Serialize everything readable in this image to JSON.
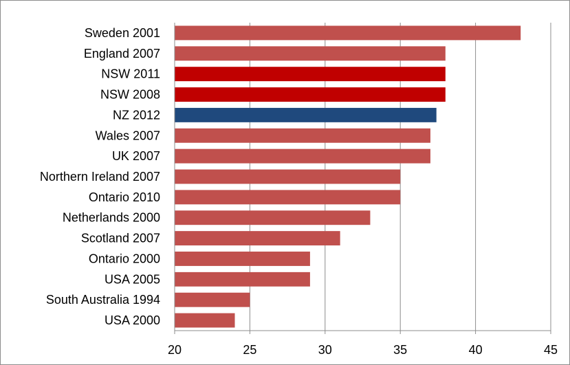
{
  "chart_data": {
    "type": "bar",
    "orientation": "horizontal",
    "title": "",
    "xlabel": "",
    "ylabel": "",
    "xlim": [
      20,
      45
    ],
    "ticks": [
      20,
      25,
      30,
      35,
      40,
      45
    ],
    "grid": true,
    "legend": "none",
    "categories": [
      "Sweden 2001",
      "England 2007",
      "NSW 2011",
      "NSW 2008",
      "NZ 2012",
      "Wales 2007",
      "UK 2007",
      "Northern Ireland 2007",
      "Ontario 2010",
      "Netherlands 2000",
      "Scotland 2007",
      "Ontario 2000",
      "USA 2005",
      "South Australia 1994",
      "USA 2000"
    ],
    "values": [
      43,
      38,
      38,
      38,
      37.4,
      37,
      37,
      35,
      35,
      33,
      31,
      29,
      29,
      25,
      24
    ],
    "bar_colors": [
      "#c0504d",
      "#c0504d",
      "#c00000",
      "#c00000",
      "#1f497d",
      "#c0504d",
      "#c0504d",
      "#c0504d",
      "#c0504d",
      "#c0504d",
      "#c0504d",
      "#c0504d",
      "#c0504d",
      "#c0504d",
      "#c0504d"
    ]
  }
}
